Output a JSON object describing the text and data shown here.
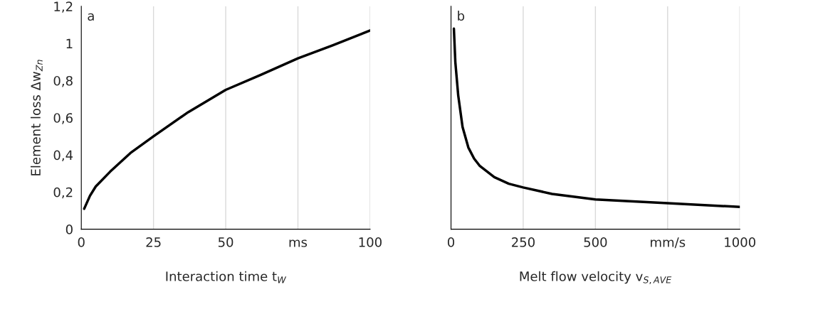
{
  "chart_data": [
    {
      "type": "line",
      "ylabel": "Element loss Δw$_{Zn}$",
      "xlabel": "Interaction time t$_{W}$",
      "annotations": [
        "a"
      ],
      "x": [
        1,
        3,
        5,
        10,
        17,
        25,
        37,
        50,
        62,
        75,
        87,
        100
      ],
      "series": [
        {
          "color": "#000000",
          "values": [
            0.11,
            0.18,
            0.23,
            0.31,
            0.41,
            0.5,
            0.63,
            0.75,
            0.83,
            0.92,
            0.99,
            1.07
          ]
        }
      ],
      "xlim": [
        0,
        100
      ],
      "xticks": [
        0,
        25,
        50,
        {
          "value": 75,
          "label": "ms"
        },
        100
      ],
      "ylim": [
        0,
        1.2
      ],
      "yticks": [
        0,
        {
          "value": 0.2,
          "label": "0,2"
        },
        {
          "value": 0.4,
          "label": "0,4"
        },
        {
          "value": 0.6,
          "label": "0,6"
        },
        {
          "value": 0.8,
          "label": "0,8"
        },
        1,
        {
          "value": 1.2,
          "label": "1,2"
        }
      ],
      "grid": "x",
      "marker": "none",
      "line_style": "solid"
    },
    {
      "type": "line",
      "xlabel": "Melt flow velocity v$_{S,AVE}$",
      "annotations": [
        "b"
      ],
      "x": [
        10,
        15,
        25,
        40,
        60,
        80,
        100,
        150,
        200,
        250,
        350,
        500,
        750,
        1000
      ],
      "series": [
        {
          "color": "#000000",
          "values": [
            1.08,
            0.9,
            0.72,
            0.55,
            0.44,
            0.38,
            0.34,
            0.28,
            0.245,
            0.225,
            0.19,
            0.16,
            0.14,
            0.12
          ]
        }
      ],
      "xlim": [
        0,
        1000
      ],
      "xticks": [
        0,
        250,
        500,
        {
          "value": 750,
          "label": "mm/s"
        },
        1000
      ],
      "ylim": [
        0,
        1.2
      ],
      "yticks": [
        {
          "value": 0,
          "label": null
        },
        {
          "value": 0.2,
          "label": null
        },
        {
          "value": 0.4,
          "label": null
        },
        {
          "value": 0.6,
          "label": null
        },
        {
          "value": 0.8,
          "label": null
        },
        {
          "value": 1,
          "label": null
        },
        {
          "value": 1.2,
          "label": null
        }
      ],
      "tick_labels": "x",
      "grid": "x",
      "marker": "none",
      "line_style": "solid"
    }
  ]
}
